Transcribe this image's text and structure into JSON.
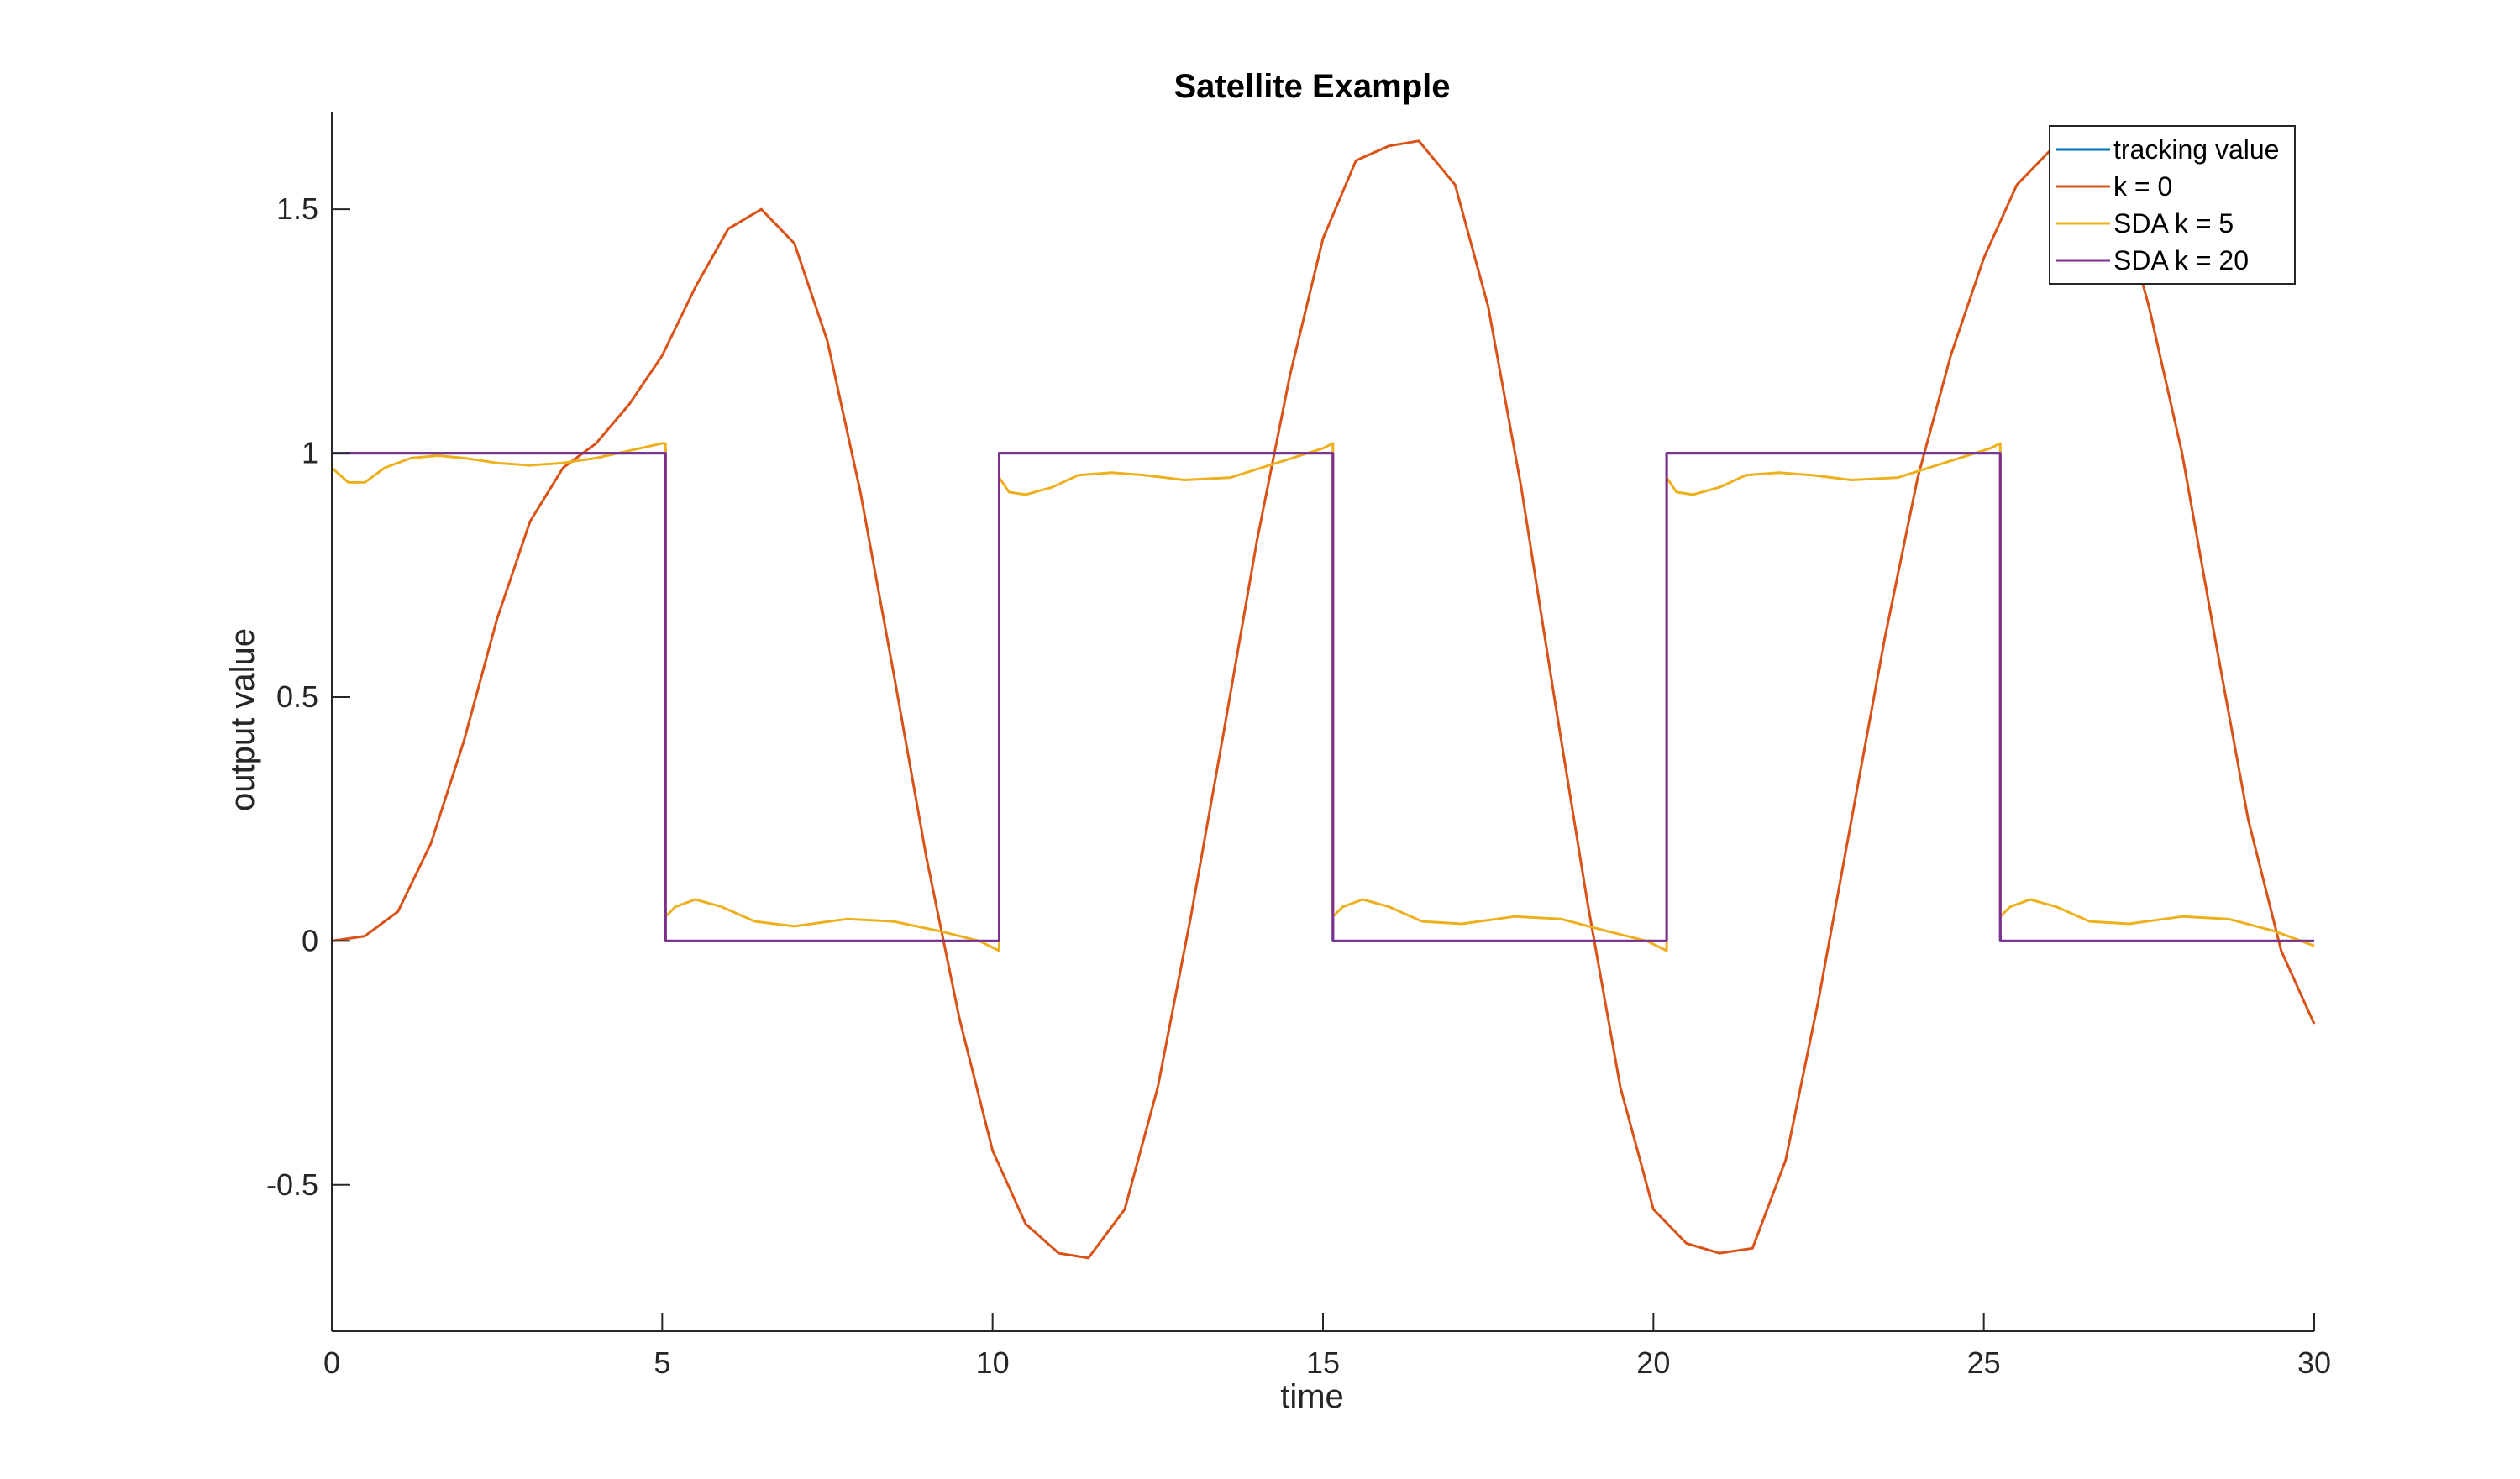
{
  "chart_data": {
    "type": "line",
    "title": "Satellite Example",
    "xlabel": "time",
    "ylabel": "output value",
    "xlim": [
      0,
      30
    ],
    "ylim": [
      -0.8,
      1.7
    ],
    "xticks": [
      0,
      5,
      10,
      15,
      20,
      25,
      30
    ],
    "xtick_labels": [
      "0",
      "5",
      "10",
      "15",
      "20",
      "25",
      "30"
    ],
    "yticks": [
      -0.5,
      0,
      0.5,
      1,
      1.5
    ],
    "ytick_labels": [
      "-0.5",
      "0",
      "0.5",
      "1",
      "1.5"
    ],
    "grid": false,
    "legend_position": "top-right",
    "series": [
      {
        "name": "tracking value",
        "color": "#0072BD",
        "x": [
          0,
          5.05,
          5.05,
          10.1,
          10.1,
          15.15,
          15.15,
          20.2,
          20.2,
          25.25,
          25.25,
          30
        ],
        "y": [
          1,
          1,
          0,
          0,
          1,
          1,
          0,
          0,
          1,
          1,
          0,
          0
        ]
      },
      {
        "name": "k = 0",
        "color": "#D95319",
        "x": [
          0,
          0.5,
          1,
          1.5,
          2,
          2.5,
          3,
          3.5,
          4,
          4.5,
          5,
          5.5,
          6,
          6.5,
          7,
          7.5,
          8,
          8.5,
          9,
          9.5,
          10,
          10.5,
          11,
          11.45,
          12,
          12.5,
          13,
          13.5,
          14,
          14.5,
          15,
          15.5,
          16,
          16.45,
          17,
          17.5,
          18,
          18.5,
          19,
          19.5,
          20,
          20.5,
          21,
          21.5,
          22,
          22.5,
          23,
          23.5,
          24,
          24.5,
          25,
          25.5,
          26,
          26.5,
          27,
          27.5,
          28,
          28.5,
          29,
          29.5,
          30
        ],
        "y": [
          0,
          0.01,
          0.06,
          0.2,
          0.41,
          0.66,
          0.86,
          0.97,
          1.02,
          1.1,
          1.2,
          1.34,
          1.46,
          1.5,
          1.43,
          1.23,
          0.92,
          0.55,
          0.17,
          -0.16,
          -0.43,
          -0.58,
          -0.64,
          -0.65,
          -0.55,
          -0.3,
          0.05,
          0.43,
          0.82,
          1.16,
          1.44,
          1.6,
          1.63,
          1.64,
          1.55,
          1.3,
          0.93,
          0.5,
          0.08,
          -0.3,
          -0.55,
          -0.62,
          -0.64,
          -0.63,
          -0.45,
          -0.12,
          0.25,
          0.62,
          0.95,
          1.2,
          1.4,
          1.55,
          1.62,
          1.64,
          1.55,
          1.3,
          1.0,
          0.62,
          0.25,
          -0.02,
          -0.17
        ]
      },
      {
        "name": "SDA k = 5",
        "color": "#EDB120",
        "x": [
          0,
          0.25,
          0.5,
          0.8,
          1.2,
          1.6,
          2.0,
          2.5,
          3.0,
          3.5,
          4.0,
          4.5,
          5.0,
          5.05,
          5.05,
          5.2,
          5.5,
          5.9,
          6.4,
          7.0,
          7.8,
          8.5,
          9.2,
          9.8,
          10.1,
          10.1,
          10.25,
          10.5,
          10.9,
          11.3,
          11.8,
          12.3,
          12.9,
          13.6,
          14.3,
          15.0,
          15.15,
          15.15,
          15.3,
          15.6,
          16.0,
          16.5,
          17.1,
          17.9,
          18.6,
          19.3,
          19.9,
          20.2,
          20.2,
          20.35,
          20.6,
          21.0,
          21.4,
          21.9,
          22.4,
          23.0,
          23.7,
          24.4,
          25.1,
          25.25,
          25.25,
          25.4,
          25.7,
          26.1,
          26.6,
          27.2,
          28.0,
          28.7,
          29.4,
          30.0
        ],
        "y": [
          0.97,
          0.94,
          0.94,
          0.97,
          0.99,
          0.995,
          0.99,
          0.98,
          0.975,
          0.98,
          0.99,
          1.005,
          1.02,
          1.02,
          0.05,
          0.07,
          0.085,
          0.07,
          0.04,
          0.03,
          0.045,
          0.04,
          0.02,
          0.0,
          -0.02,
          0.95,
          0.92,
          0.915,
          0.93,
          0.955,
          0.96,
          0.955,
          0.945,
          0.95,
          0.98,
          1.01,
          1.02,
          0.05,
          0.07,
          0.085,
          0.07,
          0.04,
          0.035,
          0.05,
          0.045,
          0.02,
          0.0,
          -0.02,
          0.95,
          0.92,
          0.915,
          0.93,
          0.955,
          0.96,
          0.955,
          0.945,
          0.95,
          0.98,
          1.01,
          1.02,
          0.05,
          0.07,
          0.085,
          0.07,
          0.04,
          0.035,
          0.05,
          0.045,
          0.02,
          -0.01
        ]
      },
      {
        "name": "SDA k = 20",
        "color": "#7E2F8E",
        "x": [
          0,
          5.05,
          5.05,
          10.1,
          10.1,
          15.15,
          15.15,
          20.2,
          20.2,
          25.25,
          25.25,
          30
        ],
        "y": [
          1,
          1,
          0,
          0,
          1,
          1,
          0,
          0,
          1,
          1,
          0,
          0
        ]
      }
    ]
  }
}
